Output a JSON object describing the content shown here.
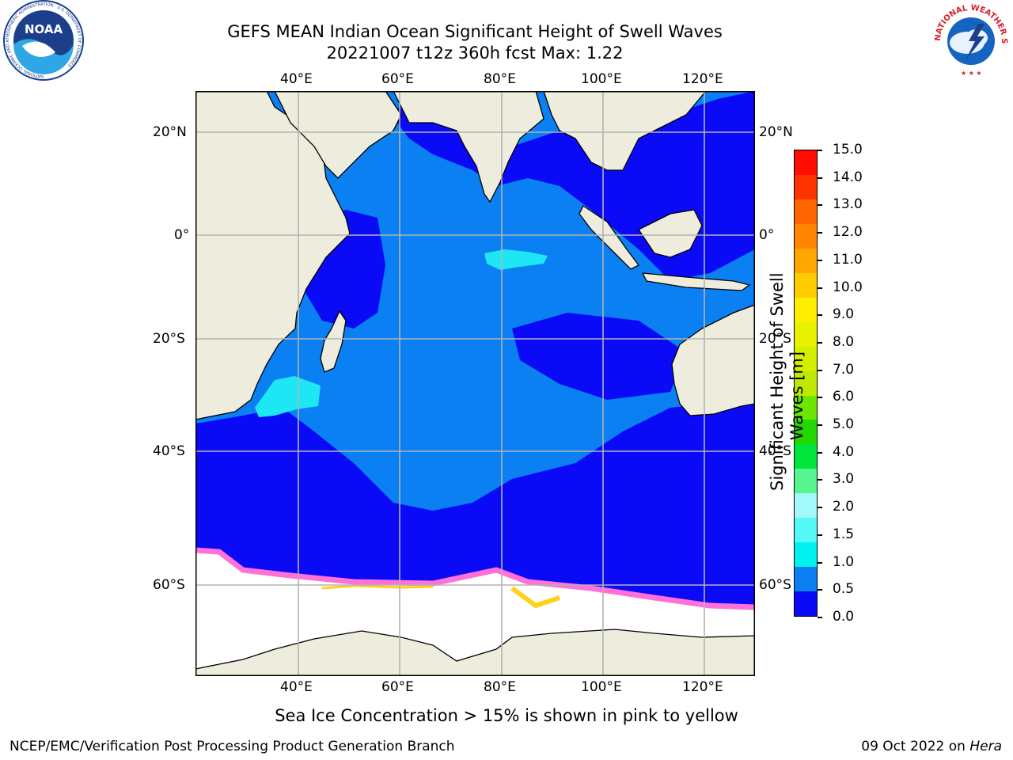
{
  "title": {
    "line1": "GEFS MEAN Indian Ocean Significant Height of Swell Waves",
    "line2": "20221007 t12z 360h fcst   Max: 1.22"
  },
  "map": {
    "lon_labels": [
      "40°E",
      "60°E",
      "80°E",
      "100°E",
      "120°E"
    ],
    "lat_labels": [
      "20°N",
      "0°",
      "20°S",
      "40°S",
      "60°S"
    ],
    "colors": {
      "band_0_0_5": "#0a0af6",
      "band_0_5_1_0": "#0a80f2",
      "band_1_0_1_5": "#1ee6f5",
      "land": "#eeecdc",
      "sea_ice": "#ffffff",
      "grid": "#b3b3b3"
    }
  },
  "colorbar": {
    "ticks": [
      "15.0",
      "14.0",
      "13.0",
      "12.0",
      "11.0",
      "10.0",
      "9.0",
      "8.0",
      "7.0",
      "6.0",
      "5.0",
      "4.0",
      "3.0",
      "2.0",
      "1.5",
      "1.0",
      "0.5",
      "0.0"
    ],
    "colors_top_to_bottom": [
      "#ff0d00",
      "#ff3300",
      "#ff6600",
      "#ff8400",
      "#ffa600",
      "#ffcc00",
      "#ffee00",
      "#e8f200",
      "#d4ee00",
      "#bfe900",
      "#6be700",
      "#22d800",
      "#00e43e",
      "#55f58f",
      "#a3f9f9",
      "#55f9f5",
      "#00f2ee",
      "#0a7ff2",
      "#0a0af6"
    ],
    "label_line1": "Significant Height of Swell",
    "label_line2": "Waves [m]"
  },
  "caption": "Sea Ice Concentration > 15% is shown in pink to yellow",
  "footer": {
    "left": "NCEP/EMC/Verification Post Processing Product Generation Branch",
    "right_date": "09 Oct 2022 on",
    "right_host": "Hera"
  },
  "logos": {
    "noaa_text": "NOAA",
    "noaa_ring": "NATIONAL OCEANIC AND ATMOSPHERIC ADMINISTRATION · U.S. DEPARTMENT OF COMMERCE",
    "nws_ring": "NATIONAL WEATHER SERVICE"
  }
}
